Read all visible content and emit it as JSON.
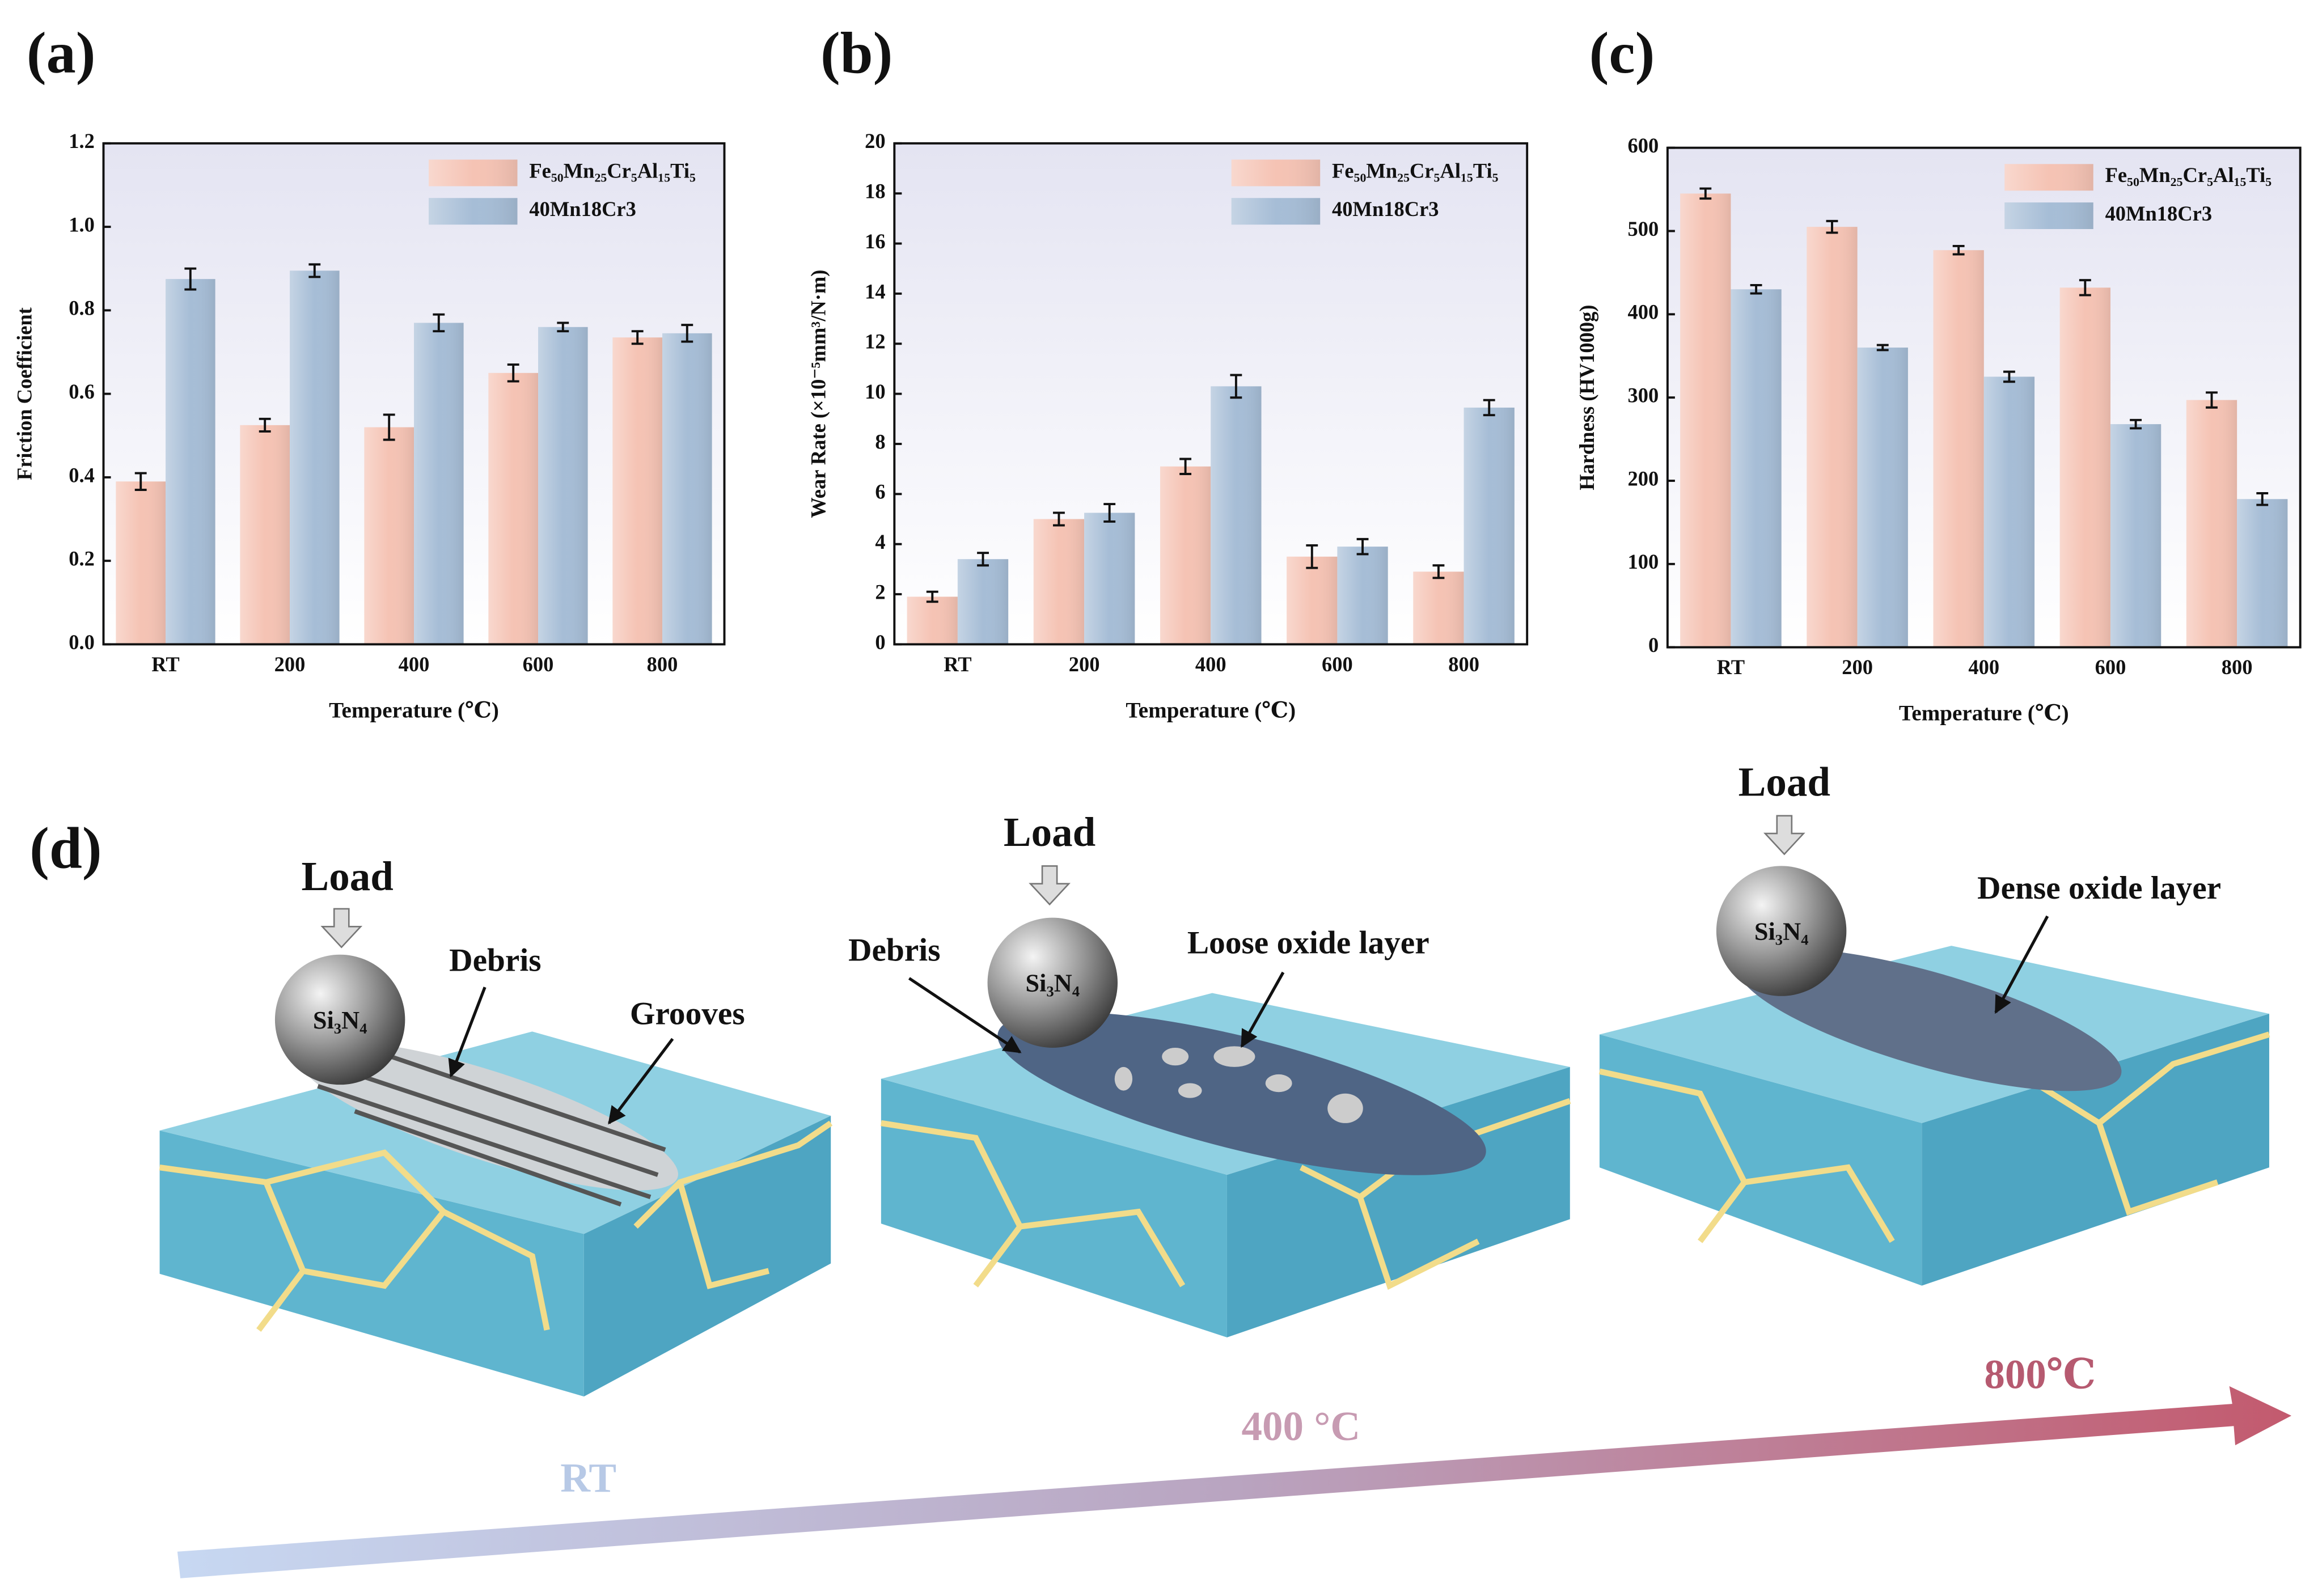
{
  "chart_data": [
    {
      "type": "bar",
      "title": "(a)",
      "x_label": "Temperature (℃)",
      "y_label": "Friction Coefficient",
      "categories": [
        "RT",
        "200",
        "400",
        "600",
        "800"
      ],
      "series": [
        {
          "name": "Fe₅₀Mn₂₅Cr₅Al₁₅Ti₅",
          "color": "#f5c3b4",
          "values": [
            0.39,
            0.525,
            0.52,
            0.65,
            0.735
          ],
          "errors": [
            0.02,
            0.015,
            0.03,
            0.02,
            0.015
          ]
        },
        {
          "name": "40Mn18Cr3",
          "color": "#a6bdd6",
          "values": [
            0.875,
            0.895,
            0.77,
            0.76,
            0.745
          ],
          "errors": [
            0.025,
            0.015,
            0.02,
            0.01,
            0.02
          ]
        }
      ],
      "ylim": [
        0,
        1.2
      ],
      "yticks": [
        {
          "value": 0,
          "label": "0.0"
        },
        0.2,
        0.4,
        0.6,
        0.8,
        {
          "value": 1,
          "label": "1.0"
        },
        1.2
      ],
      "legend": "upper right"
    },
    {
      "type": "bar",
      "title": "(b)",
      "x_label": "Temperature (℃)",
      "y_label": "Wear Rate (×10⁻⁵mm³/N·m)",
      "categories": [
        "RT",
        "200",
        "400",
        "600",
        "800"
      ],
      "series": [
        {
          "name": "Fe₅₀Mn₂₅Cr₅Al₁₅Ti₅",
          "color": "#f5c3b4",
          "values": [
            1.9,
            5.0,
            7.1,
            3.5,
            2.9
          ],
          "errors": [
            0.2,
            0.25,
            0.3,
            0.45,
            0.25
          ]
        },
        {
          "name": "40Mn18Cr3",
          "color": "#a6bdd6",
          "values": [
            3.4,
            5.25,
            10.3,
            3.9,
            9.45
          ],
          "errors": [
            0.25,
            0.35,
            0.45,
            0.3,
            0.3
          ]
        }
      ],
      "ylim": [
        0,
        20
      ],
      "yticks": [
        0,
        2,
        4,
        6,
        8,
        10,
        12,
        14,
        16,
        18,
        20
      ],
      "legend": "upper right"
    },
    {
      "type": "bar",
      "title": "(c)",
      "x_label": "Temperature (℃)",
      "y_label": "Hardness (HV1000g)",
      "categories": [
        "RT",
        "200",
        "400",
        "600",
        "800"
      ],
      "series": [
        {
          "name": "Fe₅₀Mn₂₅Cr₅Al₁₅Ti₅",
          "color": "#f5c3b4",
          "values": [
            545,
            505,
            477,
            432,
            297
          ],
          "errors": [
            6,
            7,
            5,
            9,
            9
          ]
        },
        {
          "name": "40Mn18Cr3",
          "color": "#a6bdd6",
          "values": [
            430,
            360,
            325,
            268,
            178
          ],
          "errors": [
            5,
            3,
            6,
            5,
            7
          ]
        }
      ],
      "ylim": [
        0,
        600
      ],
      "yticks": [
        0,
        100,
        200,
        300,
        400,
        500,
        600
      ],
      "legend": "upper right"
    }
  ],
  "diagram": {
    "label": "(d)",
    "panels": [
      {
        "load": "Load",
        "ball": "Si₃N₄",
        "annotations": [
          "Debris",
          "Grooves"
        ]
      },
      {
        "load": "Load",
        "ball": "Si₃N₄",
        "annotations": [
          "Debris",
          "Loose oxide layer"
        ]
      },
      {
        "load": "Load",
        "ball": "Si₃N₄",
        "annotations": [
          "Dense oxide layer"
        ]
      }
    ],
    "temperatures": [
      "RT",
      "400 °C",
      "800℃"
    ]
  }
}
